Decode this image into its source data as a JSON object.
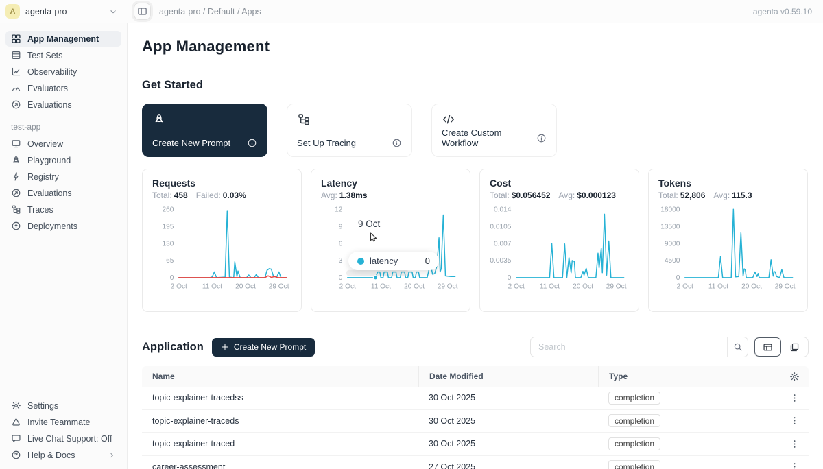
{
  "colors": {
    "accent": "#26b2d5",
    "failed_line": "#f0423c",
    "dark_navy": "#182b3d"
  },
  "topbar": {
    "workspace": {
      "avatar_letter": "A",
      "name": "agenta-pro"
    },
    "breadcrumb": "agenta-pro / Default / Apps",
    "version": "agenta v0.59.10"
  },
  "sidebar": {
    "main_items": [
      {
        "label": "App Management",
        "icon": "grid",
        "active": true
      },
      {
        "label": "Test Sets",
        "icon": "table",
        "active": false
      },
      {
        "label": "Observability",
        "icon": "chart",
        "active": false
      },
      {
        "label": "Evaluators",
        "icon": "gauge",
        "active": false
      },
      {
        "label": "Evaluations",
        "icon": "evals",
        "active": false
      }
    ],
    "app_section": {
      "label": "test-app",
      "items": [
        {
          "label": "Overview",
          "icon": "monitor"
        },
        {
          "label": "Playground",
          "icon": "rocket"
        },
        {
          "label": "Registry",
          "icon": "bolt"
        },
        {
          "label": "Evaluations",
          "icon": "evals"
        },
        {
          "label": "Traces",
          "icon": "tree"
        },
        {
          "label": "Deployments",
          "icon": "deploy"
        }
      ]
    },
    "footer_items": [
      {
        "label": "Settings",
        "icon": "gear",
        "chevron": false
      },
      {
        "label": "Invite Teammate",
        "icon": "invite",
        "chevron": false
      },
      {
        "label": "Live Chat Support: Off",
        "icon": "chat",
        "chevron": false
      },
      {
        "label": "Help & Docs",
        "icon": "help",
        "chevron": true
      }
    ]
  },
  "main": {
    "title": "App Management",
    "get_started": {
      "heading": "Get Started",
      "cards": [
        {
          "label": "Create New Prompt",
          "icon": "rocket",
          "variant": "dark"
        },
        {
          "label": "Set Up Tracing",
          "icon": "tree",
          "variant": "light"
        },
        {
          "label": "Create Custom Workflow",
          "icon": "code",
          "variant": "light"
        }
      ]
    },
    "application": {
      "heading": "Application",
      "create_button_label": "Create New Prompt",
      "search_placeholder": "Search",
      "table": {
        "columns": [
          "Name",
          "Date Modified",
          "Type"
        ],
        "rows": [
          {
            "name": "topic-explainer-tracedss",
            "date": "30 Oct 2025",
            "type": "completion"
          },
          {
            "name": "topic-explainer-traceds",
            "date": "30 Oct 2025",
            "type": "completion"
          },
          {
            "name": "topic-explainer-traced",
            "date": "30 Oct 2025",
            "type": "completion"
          },
          {
            "name": "career-assessment",
            "date": "27 Oct 2025",
            "type": "completion"
          }
        ]
      }
    }
  },
  "chart_data": [
    {
      "type": "line",
      "name": "requests",
      "title": "Requests",
      "stats": [
        {
          "label": "Total:",
          "value": "458"
        },
        {
          "label": "Failed:",
          "value": "0.03%"
        }
      ],
      "ylim": [
        0,
        260
      ],
      "yticks": [
        "260",
        "195",
        "130",
        "65",
        "0"
      ],
      "xticks": [
        {
          "pos": 0,
          "label": "2 Oct"
        },
        {
          "pos": 31,
          "label": "11 Oct"
        },
        {
          "pos": 62,
          "label": "20 Oct"
        },
        {
          "pos": 93,
          "label": "29 Oct"
        }
      ],
      "series": [
        {
          "name": "requests",
          "color": "#26b2d5",
          "points": [
            [
              0,
              0
            ],
            [
              29,
              0
            ],
            [
              31,
              3
            ],
            [
              33,
              22
            ],
            [
              35,
              0
            ],
            [
              43,
              2
            ],
            [
              45,
              255
            ],
            [
              47,
              2
            ],
            [
              51,
              0
            ],
            [
              52,
              60
            ],
            [
              54,
              4
            ],
            [
              55,
              25
            ],
            [
              57,
              0
            ],
            [
              63,
              0
            ],
            [
              65,
              10
            ],
            [
              67,
              0
            ],
            [
              70,
              0
            ],
            [
              72,
              12
            ],
            [
              74,
              0
            ],
            [
              80,
              0
            ],
            [
              82,
              28
            ],
            [
              84,
              34
            ],
            [
              86,
              32
            ],
            [
              88,
              4
            ],
            [
              91,
              2
            ],
            [
              93,
              22
            ],
            [
              95,
              0
            ],
            [
              100,
              0
            ]
          ]
        },
        {
          "name": "failed",
          "color": "#f0423c",
          "points": [
            [
              0,
              0
            ],
            [
              80,
              0
            ],
            [
              83,
              7
            ],
            [
              86,
              1
            ],
            [
              89,
              4
            ],
            [
              92,
              0
            ],
            [
              100,
              0
            ]
          ]
        }
      ]
    },
    {
      "type": "line",
      "name": "latency",
      "title": "Latency",
      "stats": [
        {
          "label": "Avg:",
          "value": "1.38ms"
        }
      ],
      "ylim": [
        0,
        12
      ],
      "yticks": [
        "12",
        "9",
        "6",
        "3",
        "0"
      ],
      "xticks": [
        {
          "pos": 0,
          "label": "2 Oct"
        },
        {
          "pos": 31,
          "label": "11 Oct"
        },
        {
          "pos": 62,
          "label": "20 Oct"
        },
        {
          "pos": 93,
          "label": "29 Oct"
        }
      ],
      "series": [
        {
          "name": "latency",
          "color": "#26b2d5",
          "points": [
            [
              0,
              0
            ],
            [
              26,
              0
            ],
            [
              28,
              1
            ],
            [
              30,
              1
            ],
            [
              31,
              0
            ],
            [
              33,
              0
            ],
            [
              34,
              1
            ],
            [
              37,
              1
            ],
            [
              38,
              0
            ],
            [
              41,
              0
            ],
            [
              42,
              1
            ],
            [
              45,
              1
            ],
            [
              46,
              0
            ],
            [
              49,
              0
            ],
            [
              50,
              1
            ],
            [
              53,
              1
            ],
            [
              54,
              0
            ],
            [
              56,
              0
            ],
            [
              57,
              1
            ],
            [
              60,
              1
            ],
            [
              61,
              0
            ],
            [
              63,
              0
            ],
            [
              64,
              1
            ],
            [
              66,
              1
            ],
            [
              67,
              0
            ],
            [
              74,
              0
            ],
            [
              76,
              1.6
            ],
            [
              78,
              1.6
            ],
            [
              79,
              0.6
            ],
            [
              81,
              0.7
            ],
            [
              83,
              2
            ],
            [
              85,
              7
            ],
            [
              86,
              1
            ],
            [
              87,
              1.5
            ],
            [
              89,
              11
            ],
            [
              91,
              0.3
            ],
            [
              96,
              0.2
            ],
            [
              100,
              0.2
            ]
          ]
        }
      ],
      "marker": [
        26,
        0
      ],
      "hover_band": 56,
      "tooltip": {
        "date": "9 Oct",
        "series": "latency",
        "value": "0"
      }
    },
    {
      "type": "line",
      "name": "cost",
      "title": "Cost",
      "stats": [
        {
          "label": "Total:",
          "value": "$0.056452"
        },
        {
          "label": "Avg:",
          "value": "$0.000123"
        }
      ],
      "ylim": [
        0,
        0.014
      ],
      "yticks": [
        "0.014",
        "0.0105",
        "0.007",
        "0.0035",
        "0"
      ],
      "xticks": [
        {
          "pos": 0,
          "label": "2 Oct"
        },
        {
          "pos": 31,
          "label": "11 Oct"
        },
        {
          "pos": 62,
          "label": "20 Oct"
        },
        {
          "pos": 93,
          "label": "29 Oct"
        }
      ],
      "series": [
        {
          "name": "cost",
          "color": "#26b2d5",
          "points": [
            [
              0,
              0
            ],
            [
              31,
              0
            ],
            [
              33,
              0.007
            ],
            [
              35,
              0
            ],
            [
              43,
              0
            ],
            [
              45,
              0.0069
            ],
            [
              47,
              0
            ],
            [
              49,
              0.0041
            ],
            [
              51,
              0.001
            ],
            [
              52,
              0.0035
            ],
            [
              54,
              0.0033
            ],
            [
              55,
              0
            ],
            [
              60,
              0
            ],
            [
              62,
              0.0013
            ],
            [
              63,
              0.0005
            ],
            [
              65,
              0.0019
            ],
            [
              67,
              0
            ],
            [
              74,
              0
            ],
            [
              76,
              0.005
            ],
            [
              77,
              0.002
            ],
            [
              79,
              0.006
            ],
            [
              80,
              0.001
            ],
            [
              82,
              0.013
            ],
            [
              84,
              0.0005
            ],
            [
              86,
              0.0075
            ],
            [
              88,
              0
            ],
            [
              100,
              0
            ]
          ]
        }
      ]
    },
    {
      "type": "line",
      "name": "tokens",
      "title": "Tokens",
      "stats": [
        {
          "label": "Total:",
          "value": "52,806"
        },
        {
          "label": "Avg:",
          "value": "115.3"
        }
      ],
      "ylim": [
        0,
        18000
      ],
      "yticks": [
        "18000",
        "13500",
        "9000",
        "4500",
        "0"
      ],
      "xticks": [
        {
          "pos": 0,
          "label": "2 Oct"
        },
        {
          "pos": 31,
          "label": "11 Oct"
        },
        {
          "pos": 62,
          "label": "20 Oct"
        },
        {
          "pos": 93,
          "label": "29 Oct"
        }
      ],
      "series": [
        {
          "name": "tokens",
          "color": "#26b2d5",
          "points": [
            [
              0,
              0
            ],
            [
              31,
              0
            ],
            [
              33,
              5500
            ],
            [
              35,
              0
            ],
            [
              43,
              0
            ],
            [
              45,
              18000
            ],
            [
              47,
              200
            ],
            [
              50,
              300
            ],
            [
              52,
              11800
            ],
            [
              54,
              400
            ],
            [
              55,
              2300
            ],
            [
              56,
              2100
            ],
            [
              57,
              0
            ],
            [
              63,
              0
            ],
            [
              65,
              1500
            ],
            [
              67,
              300
            ],
            [
              68,
              1100
            ],
            [
              69,
              0
            ],
            [
              78,
              0
            ],
            [
              80,
              4700
            ],
            [
              82,
              400
            ],
            [
              83,
              1600
            ],
            [
              84,
              1500
            ],
            [
              85,
              300
            ],
            [
              88,
              0
            ],
            [
              90,
              2100
            ],
            [
              92,
              0
            ],
            [
              100,
              0
            ]
          ]
        }
      ]
    }
  ]
}
